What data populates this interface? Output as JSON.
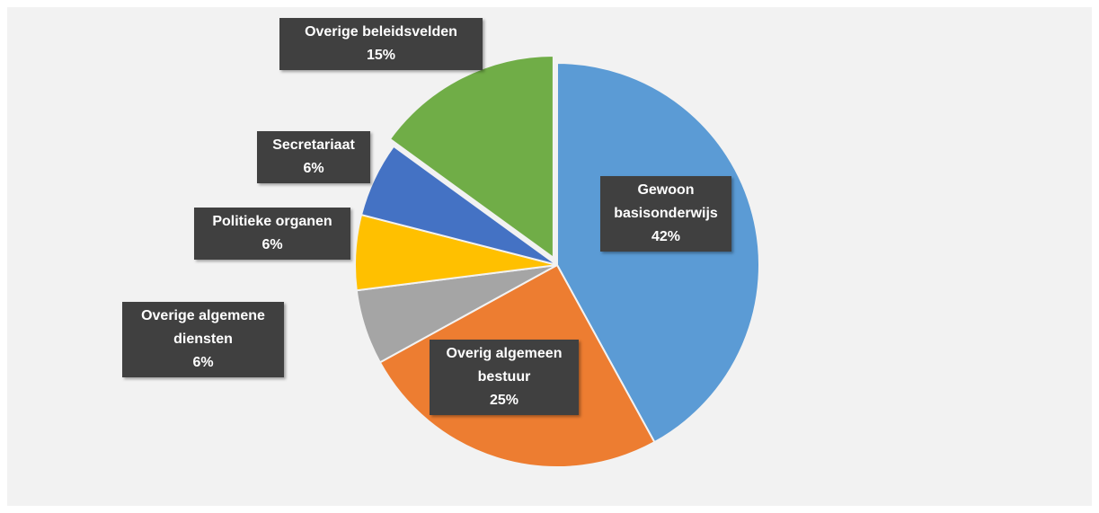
{
  "chart_data": {
    "type": "pie",
    "categories": [
      "Gewoon basisonderwijs",
      "Overig algemeen bestuur",
      "Overige algemene diensten",
      "Politieke organen",
      "Secretariaat",
      "Overige beleidsvelden"
    ],
    "values": [
      42,
      25,
      6,
      6,
      6,
      15
    ],
    "value_labels": [
      "42%",
      "25%",
      "6%",
      "6%",
      "6%",
      "15%"
    ],
    "colors": [
      "#5b9bd5",
      "#ed7d31",
      "#a5a5a5",
      "#ffc000",
      "#4472c4",
      "#70ad47"
    ]
  }
}
